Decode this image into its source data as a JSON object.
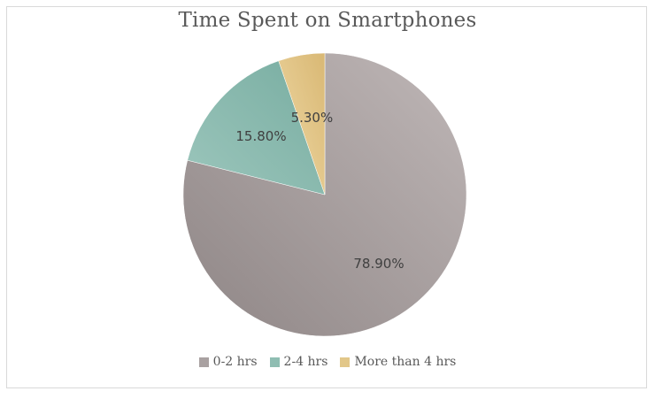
{
  "chart_data": {
    "type": "pie",
    "title": "Time Spent on Smartphones",
    "categories": [
      "0-2 hrs",
      "2-4 hrs",
      "More than 4 hrs"
    ],
    "values": [
      78.9,
      15.8,
      5.3
    ],
    "value_labels": [
      "78.90%",
      "15.80%",
      "5.30%"
    ],
    "colors": [
      "#a9a1a1",
      "#8fbdb2",
      "#e2c789"
    ],
    "legend_position": "bottom"
  }
}
